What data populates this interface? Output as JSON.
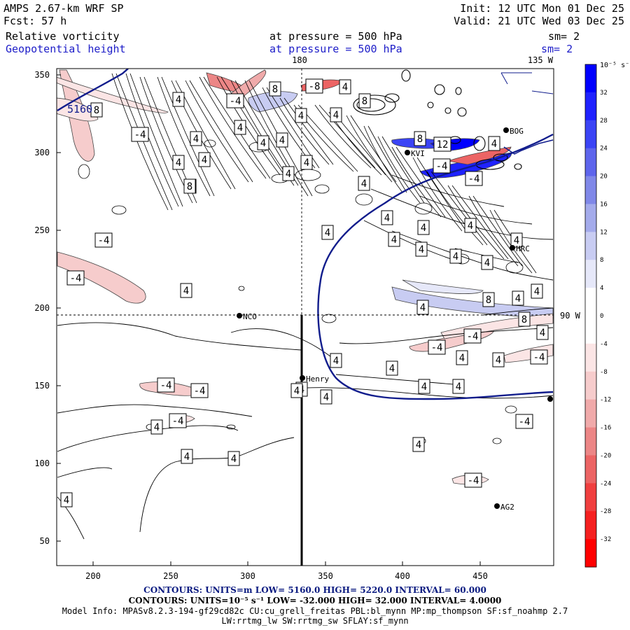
{
  "header": {
    "model": "AMPS 2.67-km WRF SP",
    "init": "Init: 12 UTC Mon 01 Dec 25",
    "fcst": "Fcst:    57 h",
    "valid": "Valid: 21 UTC Wed 03 Dec 25",
    "field1": {
      "name": "Relative vorticity",
      "level": "at pressure =  500 hPa",
      "sm": "sm= 2"
    },
    "field2": {
      "name": "Geopotential height",
      "level": "at pressure =  500 hPa",
      "sm": "sm= 2"
    }
  },
  "map": {
    "x_ticks": [
      "200",
      "250",
      "300",
      "350",
      "400",
      "450"
    ],
    "y_ticks": [
      "350",
      "300",
      "250",
      "200",
      "150",
      "100",
      "50"
    ],
    "meridians": [
      {
        "label": "180"
      },
      {
        "label": "135 W"
      },
      {
        "label": "90 W"
      }
    ],
    "stations": [
      "BOG",
      "KVI",
      "HRC",
      "NCO",
      "Henry",
      "AG2"
    ],
    "height_contour_label": "5160",
    "vorticity_labels": [
      "4",
      "8",
      "12",
      "-4",
      "-8"
    ]
  },
  "colorbar": {
    "unit": "10⁻⁵ s⁻¹",
    "ticks": [
      "32",
      "28",
      "24",
      "20",
      "16",
      "12",
      "8",
      "4",
      "0",
      "-4",
      "-8",
      "-12",
      "-16",
      "-20",
      "-24",
      "-28",
      "-32"
    ],
    "colors": [
      "#0000ff",
      "#1f22ff",
      "#3b44f5",
      "#5e65ec",
      "#8088e8",
      "#a4abeb",
      "#c8ccf2",
      "#e6e8f9",
      "#ffffff",
      "#ffffff",
      "#fbe5e5",
      "#f6cccc",
      "#f0aaaa",
      "#ec8686",
      "#ec6464",
      "#f03f3f",
      "#f52020",
      "#ff0000"
    ]
  },
  "footer": {
    "line1": "CONTOURS:  UNITS=m  LOW=  5160.0       HIGH=  5220.0       INTERVAL=   60.000",
    "line2": "CONTOURS:  UNITS=10⁻⁵ s⁻¹   LOW= -32.000         HIGH=  32.000        INTERVAL=   4.0000",
    "line3": "Model Info: MPASv8.2.3-194-gf29cd82c CU:cu_grell_freitas PBL:bl_mynn MP:mp_thompson SF:sf_noahmp 2.7",
    "line4": "LW:rrtmg_lw SW:rrtmg_sw SFLAY:sf_mynn"
  },
  "style": {
    "blue_text": "#1c1cc8",
    "navy_text": "#0a1a80",
    "height_line": "#101c8c"
  }
}
